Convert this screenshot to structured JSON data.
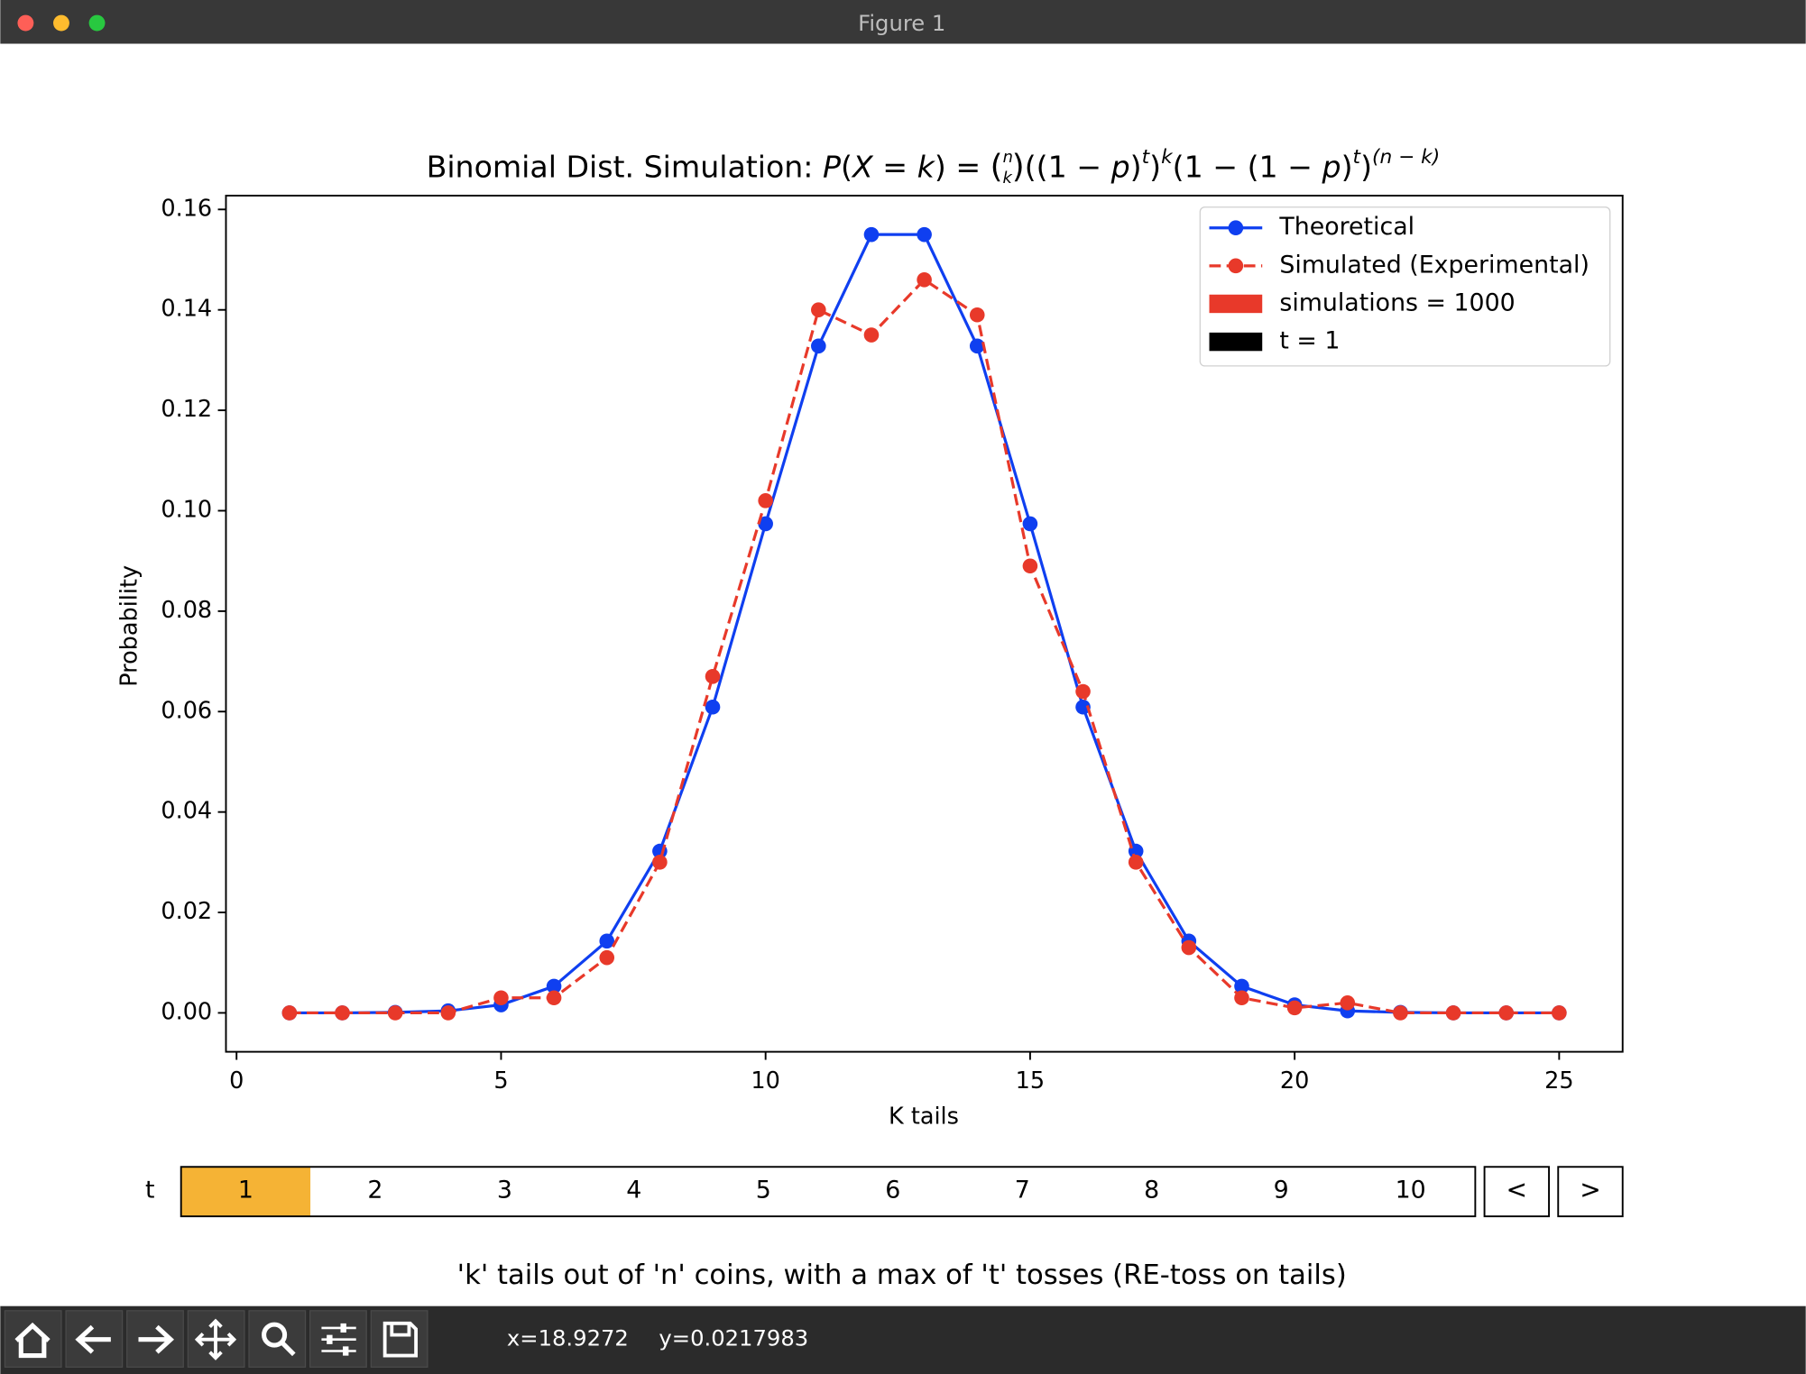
{
  "window": {
    "title": "Figure 1"
  },
  "chart_data": {
    "type": "line",
    "title": [
      "Binomial Dist. Simulation: ",
      "P",
      "(",
      "X",
      " = ",
      "k",
      ") = ",
      "n",
      "k",
      "((1 − ",
      "p",
      ")",
      "t",
      ")",
      "k",
      "(1 − (1 − ",
      "p",
      ")",
      "t",
      ")",
      "(n − k)"
    ],
    "x_label": "K tails",
    "y_label": "Probability",
    "x": [
      1,
      2,
      3,
      4,
      5,
      6,
      7,
      8,
      9,
      10,
      11,
      12,
      13,
      14,
      15,
      16,
      17,
      18,
      19,
      20,
      21,
      22,
      23,
      24,
      25
    ],
    "series": [
      {
        "name": "Theoretical",
        "color": "#0f3ff0",
        "linestyle": "solid",
        "values": [
          0,
          0,
          0.0001,
          0.0004,
          0.0016,
          0.0053,
          0.0143,
          0.0322,
          0.0609,
          0.0974,
          0.1328,
          0.155,
          0.155,
          0.1328,
          0.0974,
          0.0609,
          0.0322,
          0.0143,
          0.0053,
          0.0016,
          0.0004,
          0.0001,
          0,
          0,
          0
        ]
      },
      {
        "name": "Simulated (Experimental)",
        "color": "#e8392a",
        "linestyle": "dashed",
        "values": [
          0,
          0,
          0,
          0,
          0.003,
          0.003,
          0.011,
          0.03,
          0.067,
          0.102,
          0.14,
          0.135,
          0.146,
          0.139,
          0.089,
          0.064,
          0.03,
          0.013,
          0.003,
          0.001,
          0.002,
          0,
          0,
          0,
          0
        ]
      }
    ],
    "legend_patches": [
      {
        "name": "simulations = 1000",
        "color": "#e8392a"
      },
      {
        "name": "t = 1",
        "color": "#000000"
      }
    ],
    "legend": "upper right",
    "xlim": [
      -0.2,
      26.2
    ],
    "xticks": [
      0,
      5,
      10,
      15,
      20,
      25
    ],
    "ylim": [
      -0.00775,
      0.16275
    ],
    "yticks": [
      {
        "value": 0,
        "label": "0.00"
      },
      {
        "value": 0.02,
        "label": "0.02"
      },
      {
        "value": 0.04,
        "label": "0.04"
      },
      {
        "value": 0.06,
        "label": "0.06"
      },
      {
        "value": 0.08,
        "label": "0.08"
      },
      {
        "value": 0.1,
        "label": "0.10"
      },
      {
        "value": 0.12,
        "label": "0.12"
      },
      {
        "value": 0.14,
        "label": "0.14"
      },
      {
        "value": 0.16,
        "label": "0.16"
      }
    ],
    "grid": false
  },
  "controls": {
    "label": "t",
    "options": [
      "1",
      "2",
      "3",
      "4",
      "5",
      "6",
      "7",
      "8",
      "9",
      "10"
    ],
    "selected": 0,
    "highlight": "#f5b335",
    "buttons": [
      "<",
      ">"
    ]
  },
  "caption": "'k' tails out of 'n' coins, with a max of 't' tosses (RE-toss on tails)",
  "toolbar": {
    "coords": [
      "x=18.9272",
      "y=0.0217983"
    ]
  }
}
